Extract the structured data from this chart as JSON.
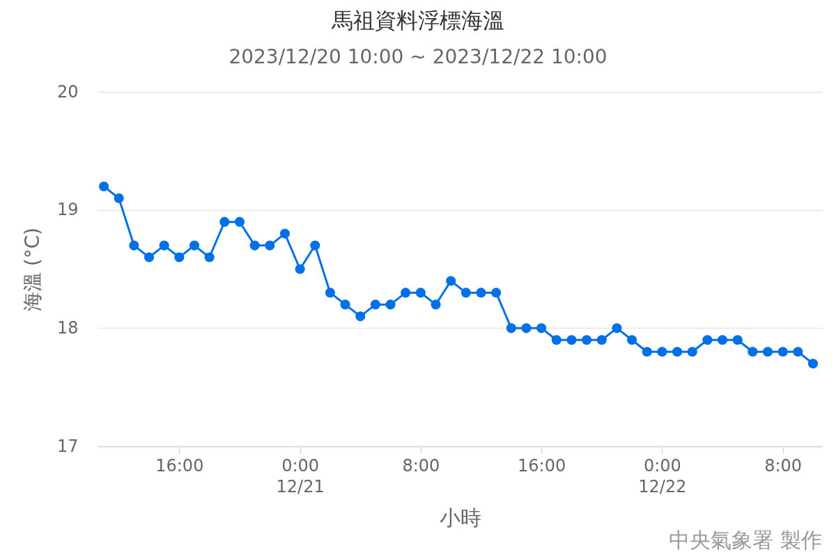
{
  "chart_data": {
    "type": "line",
    "title": "馬祖資料浮標海溫",
    "subtitle": "2023/12/20 10:00 ~ 2023/12/22 10:00",
    "xlabel": "小時",
    "ylabel": "海溫 (°C)",
    "annotations": [
      "中央氣象署 製作"
    ],
    "x": [
      "2023-12-20T11:00",
      "2023-12-20T12:00",
      "2023-12-20T13:00",
      "2023-12-20T14:00",
      "2023-12-20T15:00",
      "2023-12-20T16:00",
      "2023-12-20T17:00",
      "2023-12-20T18:00",
      "2023-12-20T19:00",
      "2023-12-20T20:00",
      "2023-12-20T21:00",
      "2023-12-20T22:00",
      "2023-12-20T23:00",
      "2023-12-21T00:00",
      "2023-12-21T01:00",
      "2023-12-21T02:00",
      "2023-12-21T03:00",
      "2023-12-21T04:00",
      "2023-12-21T05:00",
      "2023-12-21T06:00",
      "2023-12-21T07:00",
      "2023-12-21T08:00",
      "2023-12-21T09:00",
      "2023-12-21T10:00",
      "2023-12-21T11:00",
      "2023-12-21T12:00",
      "2023-12-21T13:00",
      "2023-12-21T14:00",
      "2023-12-21T15:00",
      "2023-12-21T16:00",
      "2023-12-21T17:00",
      "2023-12-21T18:00",
      "2023-12-21T19:00",
      "2023-12-21T20:00",
      "2023-12-21T21:00",
      "2023-12-21T22:00",
      "2023-12-21T23:00",
      "2023-12-22T00:00",
      "2023-12-22T01:00",
      "2023-12-22T02:00",
      "2023-12-22T03:00",
      "2023-12-22T04:00",
      "2023-12-22T05:00",
      "2023-12-22T06:00",
      "2023-12-22T07:00",
      "2023-12-22T08:00",
      "2023-12-22T09:00",
      "2023-12-22T10:00"
    ],
    "values": [
      19.2,
      19.1,
      18.7,
      18.6,
      18.7,
      18.6,
      18.7,
      18.6,
      18.9,
      18.9,
      18.7,
      18.7,
      18.8,
      18.5,
      18.7,
      18.3,
      18.2,
      18.1,
      18.2,
      18.2,
      18.3,
      18.3,
      18.2,
      18.4,
      18.3,
      18.3,
      18.3,
      18.0,
      18.0,
      18.0,
      17.9,
      17.9,
      17.9,
      17.9,
      18.0,
      17.9,
      17.8,
      17.8,
      17.8,
      17.8,
      17.9,
      17.9,
      17.9,
      17.8,
      17.8,
      17.8,
      17.8,
      17.7
    ],
    "color": "#0070e8",
    "xlim": [
      "2023-12-20T10:35",
      "2023-12-22T10:36"
    ],
    "xticks": [
      {
        "value": "2023-12-20T16:00",
        "label": "16:00"
      },
      {
        "value": "2023-12-21T00:00",
        "label": "0:00\n12/21"
      },
      {
        "value": "2023-12-21T08:00",
        "label": "8:00"
      },
      {
        "value": "2023-12-21T16:00",
        "label": "16:00"
      },
      {
        "value": "2023-12-22T00:00",
        "label": "0:00\n12/22"
      },
      {
        "value": "2023-12-22T08:00",
        "label": "8:00"
      }
    ],
    "ylim": [
      17,
      20
    ],
    "yticks": [
      17,
      18,
      19,
      20
    ],
    "grid": "y",
    "marker": "circle",
    "line_style": "solid"
  }
}
